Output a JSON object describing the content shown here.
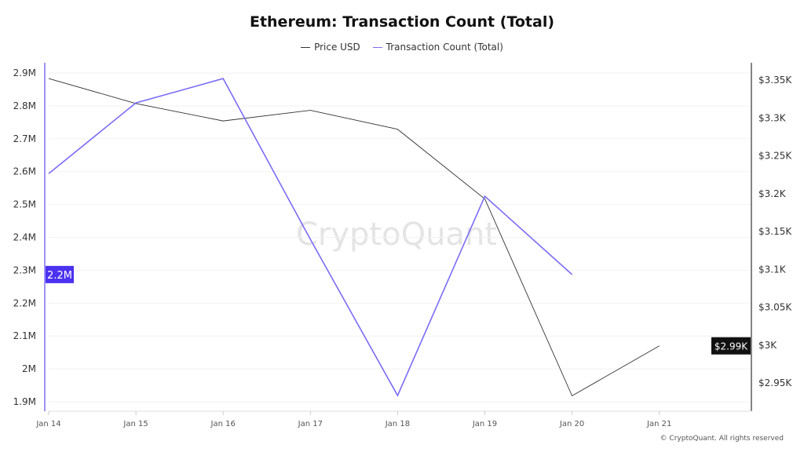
{
  "chart_data": {
    "type": "line",
    "title": "Ethereum: Transaction Count (Total)",
    "categories": [
      "Jan 14",
      "Jan 15",
      "Jan 16",
      "Jan 17",
      "Jan 18",
      "Jan 19",
      "Jan 20",
      "Jan 21"
    ],
    "series": [
      {
        "name": "Price USD",
        "axis": "right",
        "color": "#333333",
        "values": [
          3352,
          3319,
          3296,
          3310,
          3285,
          3193,
          2933,
          2999
        ]
      },
      {
        "name": "Transaction Count (Total)",
        "axis": "left",
        "color": "#7b6cf6",
        "values": [
          2594000,
          2809000,
          2883000,
          2394000,
          1919000,
          2525000,
          2287000,
          null
        ]
      }
    ],
    "y_left": {
      "ticks": [
        "1.9M",
        "2M",
        "2.1M",
        "2.2M",
        "2.3M",
        "2.4M",
        "2.5M",
        "2.6M",
        "2.7M",
        "2.8M",
        "2.9M"
      ],
      "range": [
        1900000,
        2900000
      ]
    },
    "y_right": {
      "ticks": [
        "$2.95K",
        "$3K",
        "$3.05K",
        "$3.1K",
        "$3.15K",
        "$3.2K",
        "$3.25K",
        "$3.3K",
        "$3.35K"
      ],
      "range": [
        2950,
        3350
      ]
    },
    "left_badge": "2.2M",
    "right_badge": "$2.99K",
    "grid": true,
    "legend": "top-center"
  },
  "watermark": "CryptoQuant",
  "copyright": "© CryptoQuant. All rights reserved"
}
